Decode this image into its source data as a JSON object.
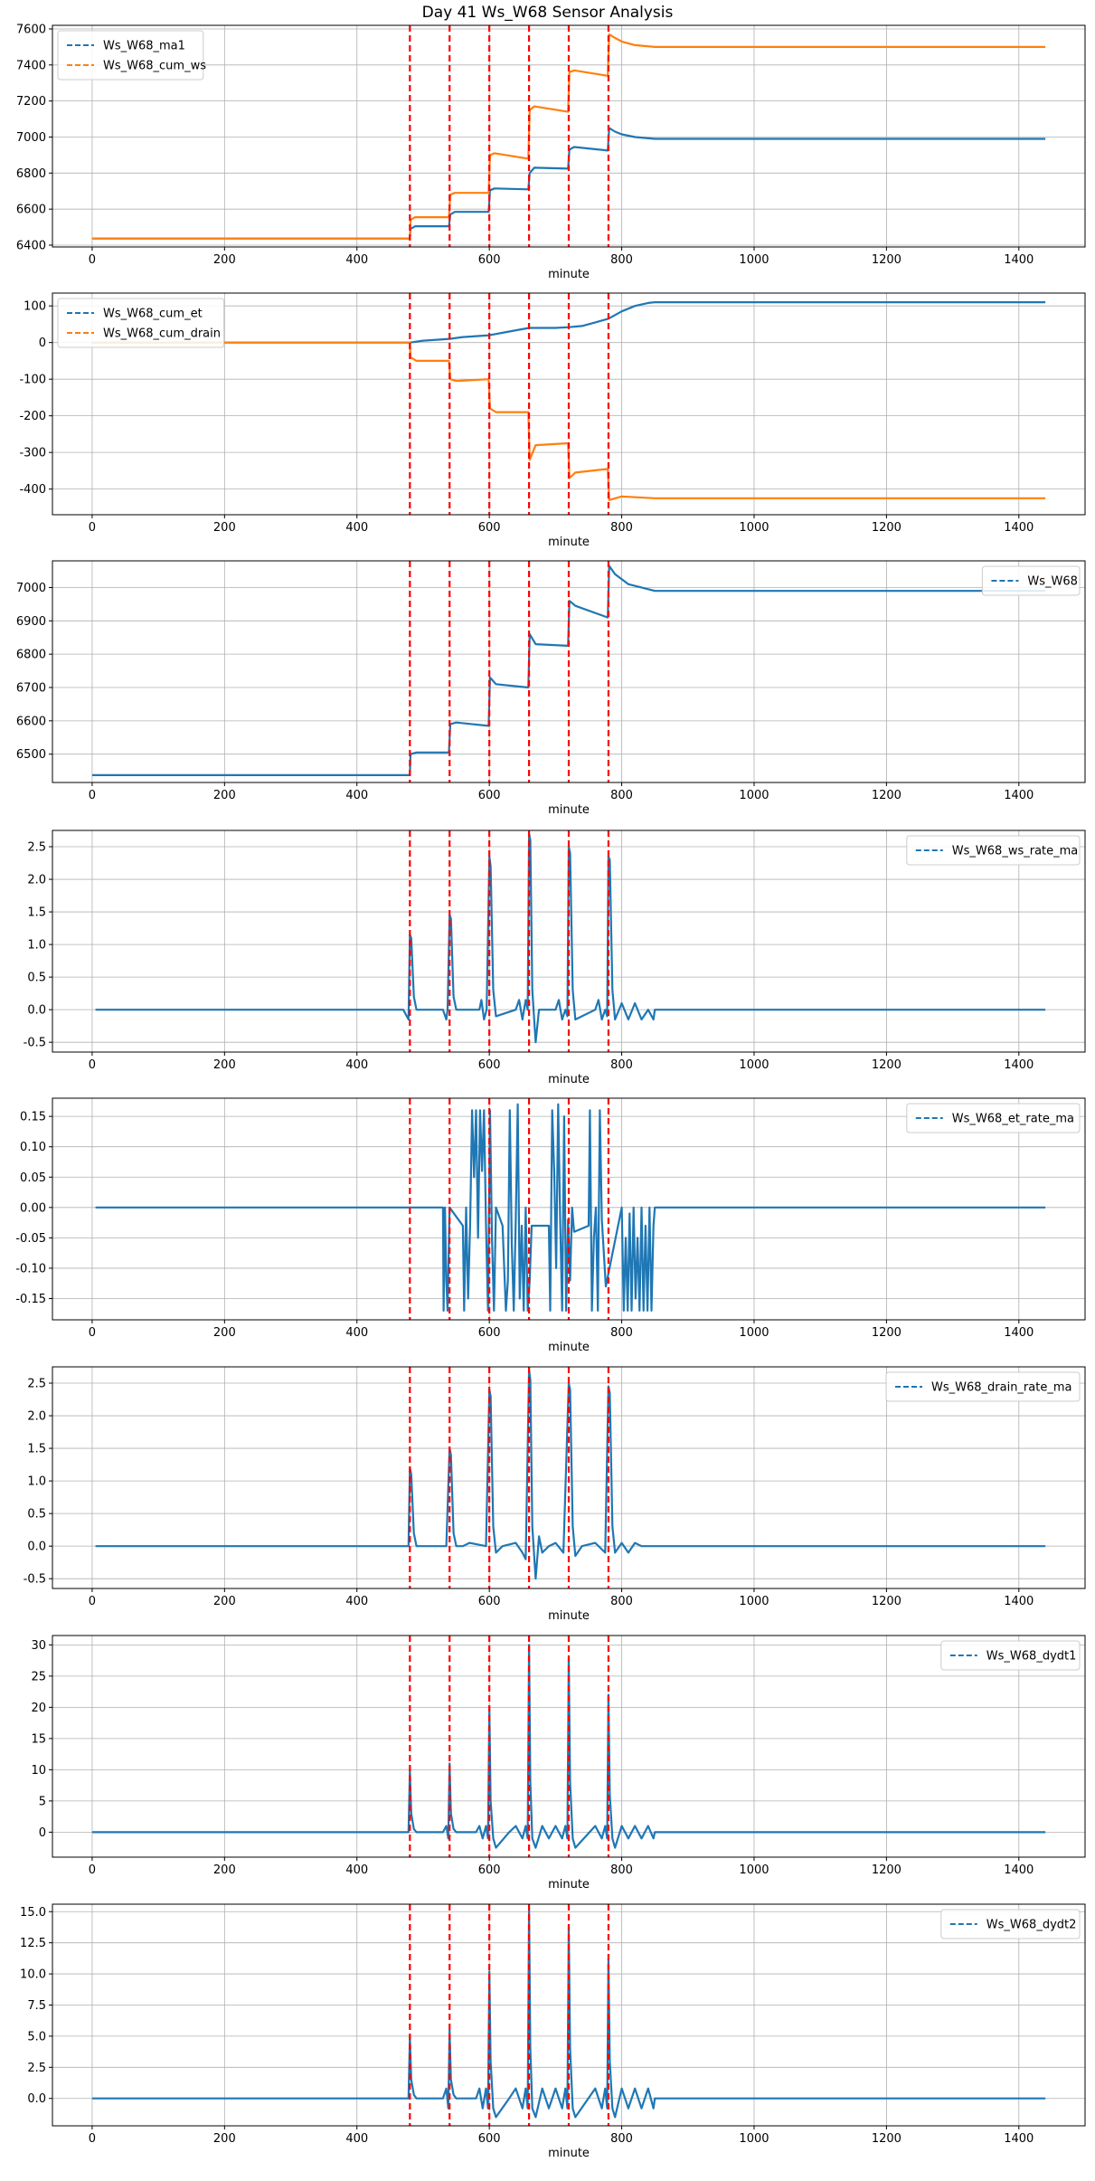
{
  "title": "Day 41 Ws_W68 Sensor Analysis",
  "colors": {
    "blue": "#1f77b4",
    "orange": "#ff7f0e",
    "event": "#ff0000",
    "grid": "#b0b0b0"
  },
  "chart_data": [
    {
      "type": "line",
      "xlabel": "minute",
      "xlim": [
        -60,
        1500
      ],
      "ylim": [
        6390,
        7620
      ],
      "yticks": [
        6400,
        6600,
        6800,
        7000,
        7200,
        7400,
        7600
      ],
      "yticklabels": [
        "6400",
        "6600",
        "6800",
        "7000",
        "7200",
        "7400",
        "7600"
      ],
      "legend": "upper left",
      "series": [
        {
          "name": "Ws_W68_ma1",
          "color": "blue",
          "x": [
            0,
            480,
            481,
            488,
            539,
            541,
            548,
            599,
            601,
            608,
            659,
            661,
            668,
            719,
            721,
            728,
            779,
            781,
            790,
            800,
            820,
            850,
            1440
          ],
          "y": [
            6437,
            6437,
            6490,
            6505,
            6505,
            6570,
            6585,
            6585,
            6705,
            6715,
            6710,
            6800,
            6830,
            6825,
            6930,
            6945,
            6925,
            7050,
            7030,
            7015,
            7000,
            6990,
            6990
          ]
        },
        {
          "name": "Ws_W68_cum_ws",
          "color": "orange",
          "x": [
            0,
            480,
            481,
            488,
            539,
            541,
            548,
            599,
            601,
            608,
            659,
            661,
            668,
            719,
            721,
            728,
            779,
            781,
            790,
            800,
            820,
            850,
            1440
          ],
          "y": [
            6437,
            6437,
            6540,
            6555,
            6555,
            6680,
            6690,
            6690,
            6900,
            6910,
            6880,
            7150,
            7170,
            7140,
            7360,
            7370,
            7340,
            7570,
            7550,
            7530,
            7510,
            7500,
            7500
          ]
        }
      ]
    },
    {
      "type": "line",
      "xlabel": "minute",
      "xlim": [
        -60,
        1500
      ],
      "ylim": [
        -470,
        135
      ],
      "yticks": [
        -400,
        -300,
        -200,
        -100,
        0,
        100
      ],
      "yticklabels": [
        "-400",
        "-300",
        "-200",
        "-100",
        "0",
        "100"
      ],
      "legend": "upper left",
      "series": [
        {
          "name": "Ws_W68_cum_et",
          "color": "blue",
          "x": [
            0,
            480,
            500,
            540,
            560,
            600,
            630,
            660,
            700,
            720,
            740,
            760,
            780,
            800,
            820,
            840,
            850,
            1440
          ],
          "y": [
            0,
            0,
            5,
            10,
            15,
            20,
            30,
            40,
            40,
            42,
            45,
            55,
            65,
            85,
            100,
            108,
            110,
            110
          ]
        },
        {
          "name": "Ws_W68_cum_drain",
          "color": "orange",
          "x": [
            0,
            480,
            481,
            490,
            539,
            541,
            550,
            599,
            601,
            610,
            659,
            661,
            670,
            719,
            721,
            730,
            779,
            781,
            800,
            850,
            1440
          ],
          "y": [
            0,
            0,
            -40,
            -50,
            -50,
            -100,
            -105,
            -100,
            -180,
            -190,
            -190,
            -320,
            -280,
            -275,
            -370,
            -355,
            -345,
            -430,
            -420,
            -425,
            -425
          ]
        }
      ]
    },
    {
      "type": "line",
      "xlabel": "minute",
      "xlim": [
        -60,
        1500
      ],
      "ylim": [
        6415,
        7080
      ],
      "yticks": [
        6500,
        6600,
        6700,
        6800,
        6900,
        7000
      ],
      "yticklabels": [
        "6500",
        "6600",
        "6700",
        "6800",
        "6900",
        "7000"
      ],
      "legend": "upper right",
      "series": [
        {
          "name": "Ws_W68",
          "color": "blue",
          "x": [
            0,
            480,
            481,
            490,
            539,
            541,
            550,
            599,
            601,
            610,
            659,
            661,
            670,
            719,
            721,
            730,
            779,
            781,
            790,
            810,
            840,
            850,
            1440
          ],
          "y": [
            6437,
            6437,
            6500,
            6505,
            6505,
            6590,
            6595,
            6585,
            6730,
            6710,
            6700,
            6860,
            6830,
            6825,
            6960,
            6945,
            6910,
            7065,
            7040,
            7010,
            6995,
            6990,
            6990
          ]
        }
      ]
    },
    {
      "type": "line",
      "xlabel": "minute",
      "xlim": [
        -60,
        1500
      ],
      "ylim": [
        -0.65,
        2.75
      ],
      "yticks": [
        -0.5,
        0,
        0.5,
        1,
        1.5,
        2,
        2.5
      ],
      "yticklabels": [
        "-0.5",
        "0.0",
        "0.5",
        "1.0",
        "1.5",
        "2.0",
        "2.5"
      ],
      "legend": "upper right",
      "series": [
        {
          "name": "Ws_W68_ws_rate_ma",
          "color": "blue",
          "x": [
            5,
            470,
            478,
            480,
            482,
            486,
            490,
            530,
            535,
            537,
            540,
            542,
            546,
            550,
            585,
            588,
            592,
            596,
            600,
            602,
            606,
            610,
            640,
            645,
            650,
            655,
            658,
            660,
            662,
            665,
            670,
            675,
            700,
            705,
            710,
            715,
            718,
            720,
            722,
            726,
            730,
            760,
            765,
            770,
            775,
            778,
            780,
            782,
            786,
            790,
            800,
            810,
            820,
            830,
            840,
            848,
            850,
            1440
          ],
          "y": [
            0,
            0,
            -0.15,
            1.15,
            1.1,
            0.2,
            0,
            0,
            -0.15,
            0,
            1.45,
            1.4,
            0.2,
            0,
            0,
            0.15,
            -0.15,
            0,
            2.35,
            2.2,
            0.3,
            -0.1,
            0,
            0.15,
            -0.15,
            0.15,
            0,
            2.7,
            2.6,
            0.3,
            -0.5,
            0,
            0,
            0.15,
            -0.15,
            0,
            -0.1,
            2.5,
            2.4,
            0.3,
            -0.15,
            0,
            0.15,
            -0.15,
            0,
            -0.1,
            2.35,
            2.3,
            0.3,
            -0.15,
            0.1,
            -0.15,
            0.1,
            -0.15,
            0,
            -0.15,
            0,
            0
          ]
        }
      ]
    },
    {
      "type": "line",
      "xlabel": "minute",
      "xlim": [
        -60,
        1500
      ],
      "ylim": [
        -0.185,
        0.18
      ],
      "yticks": [
        -0.15,
        -0.1,
        -0.05,
        0,
        0.05,
        0.1,
        0.15
      ],
      "yticklabels": [
        "-0.15",
        "-0.10",
        "-0.05",
        "0.00",
        "0.05",
        "0.10",
        "0.15"
      ],
      "legend": "upper right",
      "series": [
        {
          "name": "Ws_W68_et_rate_ma",
          "color": "blue",
          "x": [
            5,
            530,
            531,
            533,
            535,
            537,
            540,
            560,
            562,
            565,
            568,
            571,
            574,
            577,
            580,
            583,
            586,
            589,
            592,
            595,
            598,
            601,
            604,
            607,
            610,
            620,
            625,
            628,
            631,
            634,
            637,
            640,
            643,
            646,
            649,
            652,
            655,
            658,
            661,
            664,
            690,
            692,
            695,
            698,
            701,
            704,
            707,
            710,
            713,
            716,
            719,
            722,
            725,
            728,
            750,
            752,
            755,
            758,
            761,
            764,
            767,
            770,
            776,
            800,
            803,
            806,
            809,
            812,
            815,
            818,
            821,
            824,
            827,
            830,
            833,
            836,
            839,
            842,
            845,
            848,
            850,
            1440
          ],
          "y": [
            0,
            0,
            -0.17,
            0,
            -0.12,
            -0.17,
            0,
            -0.03,
            -0.17,
            0,
            -0.15,
            -0.03,
            0.16,
            0.05,
            0.16,
            -0.05,
            0.16,
            0.06,
            0.16,
            -0.03,
            -0.17,
            0.16,
            -0.05,
            -0.17,
            0,
            -0.03,
            -0.17,
            -0.12,
            0.16,
            -0.06,
            -0.17,
            -0.02,
            0.17,
            -0.15,
            -0.03,
            -0.17,
            0,
            -0.17,
            -0.12,
            -0.03,
            -0.03,
            -0.17,
            0.16,
            0.06,
            -0.1,
            0.17,
            -0.02,
            -0.17,
            0.15,
            -0.17,
            -0.02,
            -0.12,
            0,
            -0.04,
            -0.03,
            0.16,
            -0.17,
            -0.05,
            0,
            -0.17,
            0.16,
            -0.02,
            -0.13,
            0,
            -0.17,
            -0.05,
            -0.17,
            -0.01,
            -0.17,
            0,
            -0.15,
            -0.05,
            -0.17,
            0,
            -0.17,
            -0.03,
            -0.17,
            0,
            -0.17,
            -0.03,
            0,
            0
          ]
        }
      ]
    },
    {
      "type": "line",
      "xlabel": "minute",
      "xlim": [
        -60,
        1500
      ],
      "ylim": [
        -0.65,
        2.75
      ],
      "yticks": [
        -0.5,
        0,
        0.5,
        1,
        1.5,
        2,
        2.5
      ],
      "yticklabels": [
        "-0.5",
        "0.0",
        "0.5",
        "1.0",
        "1.5",
        "2.0",
        "2.5"
      ],
      "legend": "upper right",
      "series": [
        {
          "name": "Ws_W68_drain_rate_ma",
          "color": "blue",
          "x": [
            5,
            478,
            480,
            482,
            486,
            490,
            535,
            540,
            542,
            546,
            550,
            560,
            570,
            595,
            600,
            602,
            606,
            610,
            620,
            640,
            650,
            655,
            660,
            662,
            665,
            670,
            675,
            680,
            690,
            700,
            712,
            720,
            722,
            726,
            730,
            740,
            760,
            775,
            780,
            782,
            786,
            790,
            800,
            810,
            820,
            830,
            1440
          ],
          "y": [
            0,
            0,
            1.2,
            1.1,
            0.2,
            0,
            0,
            1.5,
            1.4,
            0.2,
            0,
            0,
            0.05,
            0,
            2.4,
            2.3,
            0.3,
            -0.1,
            0,
            0.05,
            -0.1,
            -0.2,
            2.7,
            2.55,
            0.3,
            -0.5,
            0.15,
            -0.1,
            0,
            0.05,
            -0.1,
            2.5,
            2.4,
            0.3,
            -0.15,
            0,
            0.05,
            -0.1,
            2.45,
            2.35,
            0.3,
            -0.1,
            0.05,
            -0.1,
            0.05,
            0,
            0
          ]
        }
      ]
    },
    {
      "type": "line",
      "xlabel": "minute",
      "xlim": [
        -60,
        1500
      ],
      "ylim": [
        -4,
        31.5
      ],
      "yticks": [
        0,
        5,
        10,
        15,
        20,
        25,
        30
      ],
      "yticklabels": [
        "0",
        "5",
        "10",
        "15",
        "20",
        "25",
        "30"
      ],
      "legend": "upper right",
      "series": [
        {
          "name": "Ws_W68_dydt1",
          "color": "blue",
          "x": [
            0,
            478,
            480,
            482,
            486,
            490,
            530,
            535,
            538,
            540,
            542,
            546,
            550,
            580,
            585,
            590,
            595,
            598,
            600,
            602,
            606,
            610,
            630,
            640,
            650,
            655,
            658,
            660,
            662,
            665,
            670,
            680,
            690,
            700,
            710,
            715,
            718,
            720,
            722,
            726,
            730,
            760,
            770,
            775,
            778,
            780,
            782,
            786,
            790,
            800,
            810,
            820,
            830,
            840,
            848,
            850,
            1440
          ],
          "y": [
            0,
            0,
            10,
            3,
            0.5,
            0,
            0,
            1,
            -1,
            11,
            3,
            0.5,
            0,
            0,
            1,
            -1,
            1,
            -1,
            20,
            5,
            -1,
            -2.5,
            0,
            1,
            -1,
            1,
            -1,
            30,
            8,
            -1,
            -2.5,
            1,
            -1,
            1,
            -1,
            1,
            -1,
            28,
            8,
            -1,
            -2.5,
            1,
            -1,
            1,
            -1,
            22,
            6,
            -1,
            -2.5,
            1,
            -1,
            1,
            -1,
            1,
            -1,
            0,
            0
          ]
        }
      ]
    },
    {
      "type": "line",
      "xlabel": "minute",
      "xlim": [
        -60,
        1500
      ],
      "ylim": [
        -2.2,
        15.6
      ],
      "yticks": [
        0,
        2.5,
        5,
        7.5,
        10,
        12.5,
        15
      ],
      "yticklabels": [
        "0.0",
        "2.5",
        "5.0",
        "7.5",
        "10.0",
        "12.5",
        "15.0"
      ],
      "legend": "upper right",
      "series": [
        {
          "name": "Ws_W68_dydt2",
          "color": "blue",
          "x": [
            0,
            478,
            480,
            482,
            486,
            490,
            530,
            535,
            538,
            540,
            542,
            546,
            550,
            580,
            585,
            590,
            595,
            598,
            600,
            602,
            606,
            610,
            630,
            640,
            650,
            655,
            658,
            660,
            662,
            665,
            670,
            680,
            690,
            700,
            710,
            715,
            718,
            720,
            722,
            726,
            730,
            760,
            770,
            775,
            778,
            780,
            782,
            786,
            790,
            800,
            810,
            820,
            830,
            840,
            848,
            850,
            1440
          ],
          "y": [
            0,
            0,
            5,
            1.5,
            0.3,
            0,
            0,
            0.8,
            -0.8,
            5.5,
            1.5,
            0.3,
            0,
            0,
            0.8,
            -0.8,
            0.8,
            -0.8,
            10.2,
            3,
            -0.8,
            -1.5,
            0,
            0.8,
            -0.8,
            0.8,
            -0.8,
            15.3,
            4,
            -0.8,
            -1.5,
            0.8,
            -0.8,
            0.8,
            -0.8,
            0.8,
            -0.8,
            13.8,
            4,
            -0.8,
            -1.5,
            0.8,
            -0.8,
            0.8,
            -0.8,
            11.2,
            3,
            -0.8,
            -1.5,
            0.8,
            -0.8,
            0.8,
            -0.8,
            0.8,
            -0.8,
            0,
            0
          ]
        }
      ]
    }
  ],
  "events": [
    480,
    540,
    600,
    660,
    720,
    780
  ],
  "xticks": [
    0,
    200,
    400,
    600,
    800,
    1000,
    1200,
    1400
  ],
  "xticklabels": [
    "0",
    "200",
    "400",
    "600",
    "800",
    "1000",
    "1200",
    "1400"
  ]
}
